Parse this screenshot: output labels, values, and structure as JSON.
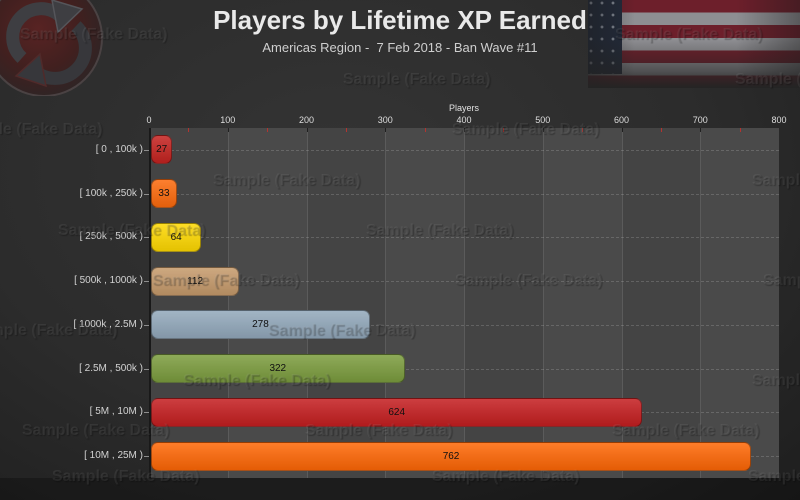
{
  "page": {
    "title": "Players by Lifetime XP Earned",
    "subtitle": "Americas Region -  7 Feb 2018 - Ban Wave #11",
    "watermark": "Sample (Fake Data)"
  },
  "chart_data": {
    "type": "bar",
    "orientation": "horizontal",
    "title": "Players by Lifetime XP Earned",
    "subtitle": "Americas Region -  7 Feb 2018 - Ban Wave #11",
    "xlabel": "Players",
    "xlim": [
      0,
      800
    ],
    "x_ticks": [
      0,
      100,
      200,
      300,
      400,
      500,
      600,
      700,
      800
    ],
    "minor_tick_interval": 50,
    "grid": true,
    "legend": "none",
    "categories": [
      "[ 0 , 100k )",
      "[ 100k , 250k )",
      "[ 250k , 500k )",
      "[ 500k , 1000k )",
      "[ 1000k , 2.5M )",
      "[ 2.5M , 500k )",
      "[ 5M , 10M )",
      "[ 10M , 25M )"
    ],
    "values": [
      27,
      33,
      64,
      112,
      278,
      322,
      624,
      762
    ],
    "bar_colors": [
      "#c42320",
      "#fc6a0d",
      "#fed801",
      "#c59a6b",
      "#92a8bb",
      "#7b9c3e",
      "#c41e20",
      "#fe6706"
    ]
  }
}
